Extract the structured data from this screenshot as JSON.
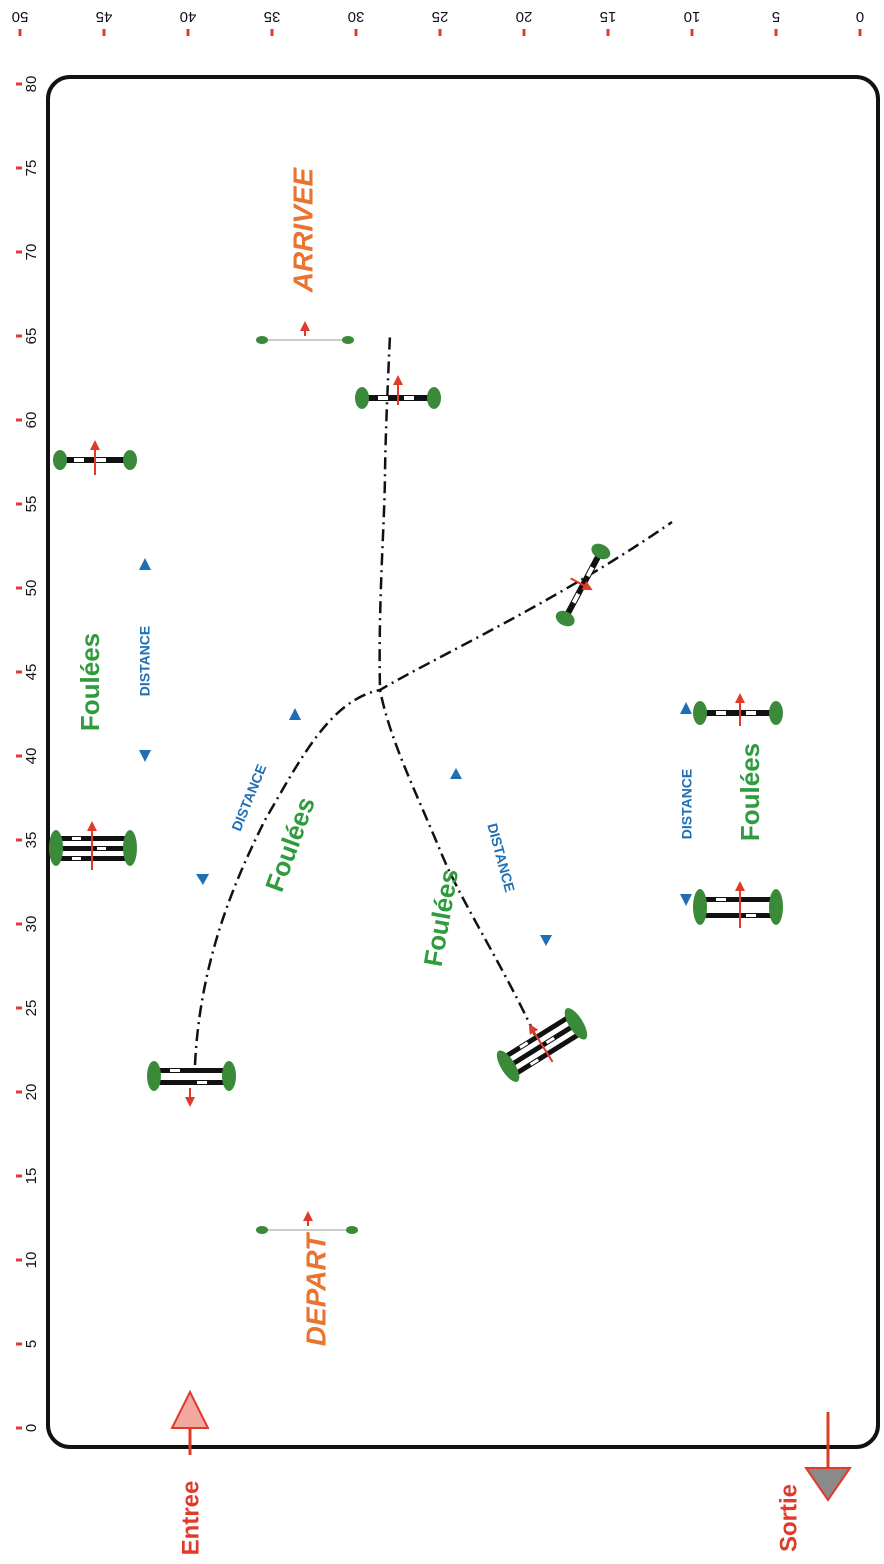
{
  "scale_top": {
    "labels": [
      "50",
      "45",
      "40",
      "35",
      "30",
      "25",
      "20",
      "15",
      "10",
      "5",
      "0"
    ]
  },
  "scale_left": {
    "labels": [
      "80",
      "75",
      "70",
      "65",
      "60",
      "55",
      "50",
      "45",
      "40",
      "35",
      "30",
      "25",
      "20",
      "15",
      "10",
      "5",
      "0"
    ]
  },
  "labels": {
    "arrivee": "ARRIVEE",
    "depart": "DEPART",
    "entree": "Entree",
    "sortie": "Sortie",
    "foulees": "Foulées",
    "distance": "DISTANCE"
  },
  "colors": {
    "scale_tick": "#e03a2a",
    "start_finish_text": "#e8742f",
    "entry_exit_text": "#e03a2a",
    "foulees_text": "#2e9c3d",
    "distance_text": "#1f6fb5",
    "marker": "#1f6fb5",
    "obstacle_stand": "#3a8a3a",
    "obstacle_arrow": "#e03a2a",
    "gate_arrow": "#8a8a8a",
    "arena_border": "#111111"
  }
}
